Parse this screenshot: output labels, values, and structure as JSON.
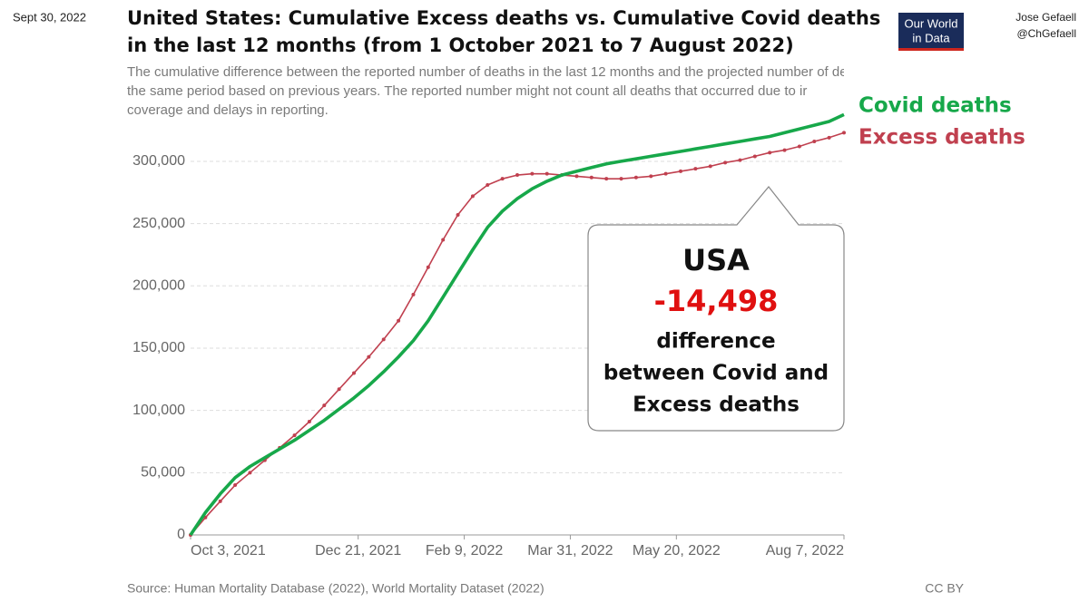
{
  "date": "Sept 30, 2022",
  "author": [
    "Jose Gefaell",
    "@ChGefaell"
  ],
  "logo": [
    "Our World",
    "in Data"
  ],
  "callout": {
    "title": "USA",
    "value": "-14,498",
    "text": [
      "difference",
      "between Covid and",
      "Excess deaths"
    ]
  },
  "chart_data": {
    "type": "line",
    "title": [
      "United States: Cumulative Excess deaths vs. Cumulative Covid deaths",
      "in the last 12 months (from 1 October 2021 to 7 August 2022)"
    ],
    "subtitle": [
      "The cumulative difference between the reported number of deaths in the last 12 months and the projected number of deaths for",
      "the same period based on previous years. The reported number might not count all deaths that occurred due to ir",
      "coverage and delays in reporting."
    ],
    "source": "Source: Human Mortality Database (2022), World Mortality Dataset (2022)",
    "license": "CC BY",
    "x": [
      "2021-10-03",
      "2021-10-10",
      "2021-10-17",
      "2021-10-24",
      "2021-10-31",
      "2021-11-07",
      "2021-11-14",
      "2021-11-21",
      "2021-11-28",
      "2021-12-05",
      "2021-12-12",
      "2021-12-19",
      "2021-12-26",
      "2022-01-02",
      "2022-01-09",
      "2022-01-16",
      "2022-01-23",
      "2022-01-30",
      "2022-02-06",
      "2022-02-13",
      "2022-02-20",
      "2022-02-27",
      "2022-03-06",
      "2022-03-13",
      "2022-03-20",
      "2022-03-27",
      "2022-04-03",
      "2022-04-10",
      "2022-04-17",
      "2022-04-24",
      "2022-05-01",
      "2022-05-08",
      "2022-05-15",
      "2022-05-22",
      "2022-05-29",
      "2022-06-05",
      "2022-06-12",
      "2022-06-19",
      "2022-06-26",
      "2022-07-03",
      "2022-07-10",
      "2022-07-17",
      "2022-07-24",
      "2022-07-31",
      "2022-08-07"
    ],
    "series": [
      {
        "name": "Covid deaths",
        "color": "#17a84a",
        "markers": false,
        "values": [
          0,
          18000,
          33000,
          46000,
          55000,
          62000,
          69000,
          76000,
          84000,
          92000,
          101000,
          110000,
          120000,
          131000,
          143000,
          156000,
          172000,
          191000,
          210000,
          229000,
          247000,
          260000,
          270000,
          278000,
          284000,
          289000,
          292000,
          295000,
          298000,
          300000,
          302000,
          304000,
          306000,
          308000,
          310000,
          312000,
          314000,
          316000,
          318000,
          320000,
          323000,
          326000,
          329000,
          332000,
          337500
        ]
      },
      {
        "name": "Excess deaths",
        "color": "#c0404f",
        "markers": true,
        "values": [
          0,
          14000,
          27000,
          40000,
          50000,
          60000,
          70000,
          80000,
          91000,
          104000,
          117000,
          130000,
          143000,
          157000,
          172000,
          193000,
          215000,
          237000,
          257000,
          272000,
          281000,
          286000,
          289000,
          290000,
          290000,
          289000,
          288000,
          287000,
          286000,
          286000,
          287000,
          288000,
          290000,
          292000,
          294000,
          296000,
          299000,
          301000,
          304000,
          307000,
          309000,
          312000,
          316000,
          319000,
          323000
        ]
      }
    ],
    "xlim": [
      "2021-10-03",
      "2022-08-07"
    ],
    "xticks": [
      {
        "value": "2021-10-03",
        "label": "Oct 3, 2021"
      },
      {
        "value": "2021-12-21",
        "label": "Dec 21, 2021"
      },
      {
        "value": "2022-02-09",
        "label": "Feb 9, 2022"
      },
      {
        "value": "2022-03-31",
        "label": "Mar 31, 2022"
      },
      {
        "value": "2022-05-20",
        "label": "May 20, 2022"
      },
      {
        "value": "2022-08-07",
        "label": "Aug 7, 2022"
      }
    ],
    "ylim": [
      0,
      340000
    ],
    "yticks": [
      0,
      {
        "value": 50000,
        "label": "50,000"
      },
      {
        "value": 100000,
        "label": "100,000"
      },
      {
        "value": 150000,
        "label": "150,000"
      },
      {
        "value": 200000,
        "label": "200,000"
      },
      {
        "value": 250000,
        "label": "250,000"
      },
      {
        "value": 300000,
        "label": "300,000"
      }
    ],
    "grid": true
  }
}
